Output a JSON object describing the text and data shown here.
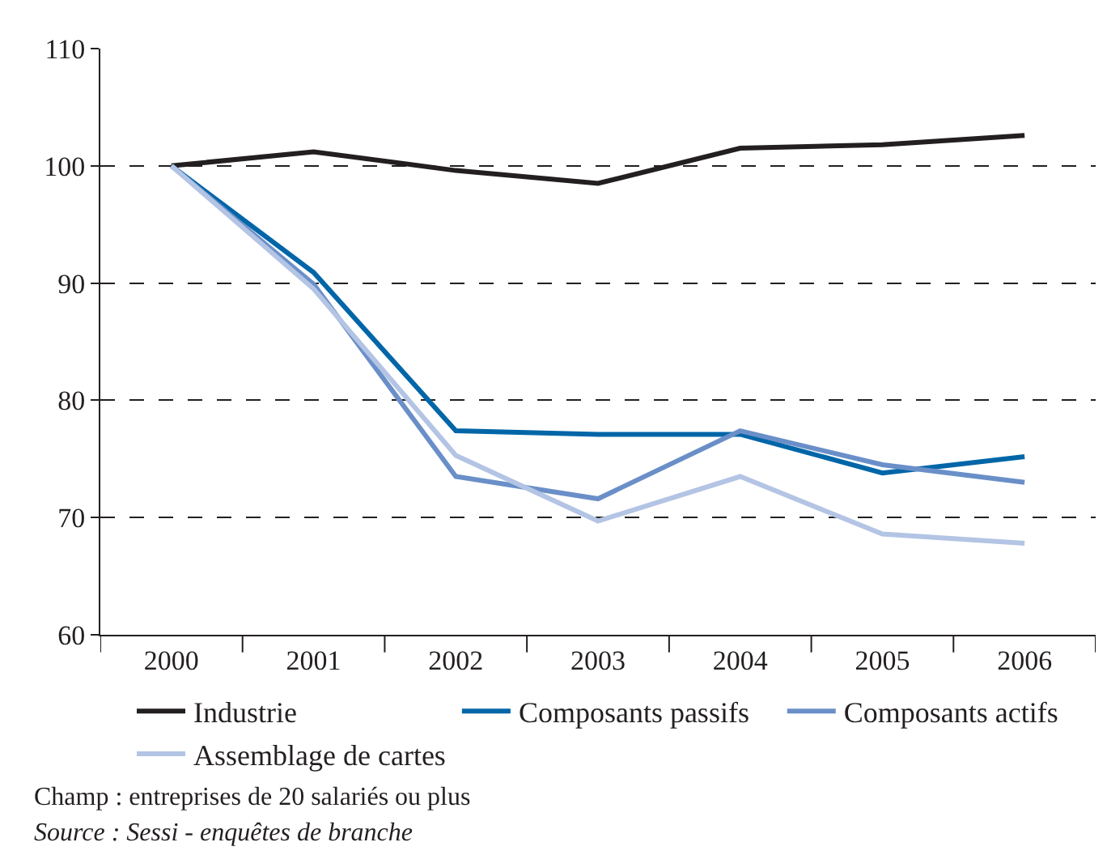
{
  "chart_data": {
    "type": "line",
    "categories": [
      "2000",
      "2001",
      "2002",
      "2003",
      "2004",
      "2005",
      "2006"
    ],
    "series": [
      {
        "name": "Industrie",
        "color": "#231f20",
        "values": [
          100,
          101.2,
          99.6,
          98.5,
          101.5,
          101.8,
          102.6
        ]
      },
      {
        "name": "Composants passifs",
        "color": "#0066a8",
        "values": [
          100,
          90.9,
          77.4,
          77.1,
          77.1,
          73.8,
          75.2
        ]
      },
      {
        "name": "Composants actifs",
        "color": "#6a8fc8",
        "values": [
          100,
          89.9,
          73.5,
          71.6,
          77.4,
          74.5,
          73.0
        ]
      },
      {
        "name": "Assemblage de cartes",
        "color": "#b3c4e4",
        "values": [
          100,
          89.5,
          75.3,
          69.7,
          73.5,
          68.6,
          67.8
        ]
      }
    ],
    "ylim": [
      60,
      110
    ],
    "yticks": [
      60,
      70,
      80,
      90,
      100,
      110
    ],
    "grid": "y",
    "legend": "bottom",
    "marker": "none",
    "line_style": "solid",
    "annotations": [
      "Champ : entreprises de 20 salariés ou plus",
      "Source : Sessi - enquêtes de branche"
    ]
  }
}
